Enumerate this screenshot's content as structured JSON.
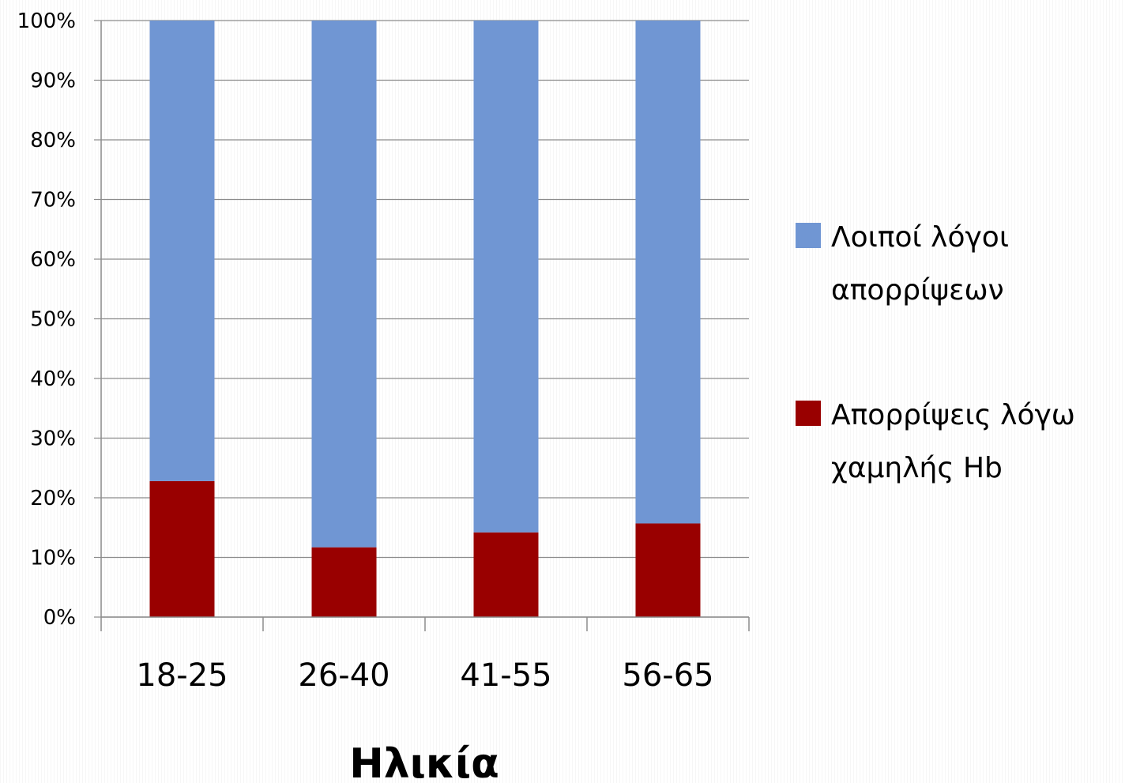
{
  "chart_data": {
    "type": "bar",
    "stacked": true,
    "percent": true,
    "categories": [
      "18-25",
      "26-40",
      "41-55",
      "56-65"
    ],
    "series": [
      {
        "name": "Απορρίψεις λόγω χαμηλής Hb",
        "values": [
          22.8,
          11.7,
          14.2,
          15.7
        ],
        "color": "#990000"
      },
      {
        "name": "Λοιποί λόγοι απορρίψεων",
        "values": [
          77.2,
          88.3,
          85.8,
          84.3
        ],
        "color": "#7096d3"
      }
    ],
    "title": "",
    "xlabel": "Ηλικία",
    "ylabel": "",
    "ylim": [
      0,
      100
    ],
    "yticks": [
      "0%",
      "10%",
      "20%",
      "30%",
      "40%",
      "50%",
      "60%",
      "70%",
      "80%",
      "90%",
      "100%"
    ],
    "grid": true,
    "legend": {
      "position": "right",
      "entries": [
        {
          "lines": [
            "Λοιποί λόγοι",
            "απορρίψεων"
          ],
          "color": "#7096d3"
        },
        {
          "lines": [
            "Απορρίψεις λόγω",
            "χαμηλής Hb"
          ],
          "color": "#990000"
        }
      ]
    }
  }
}
